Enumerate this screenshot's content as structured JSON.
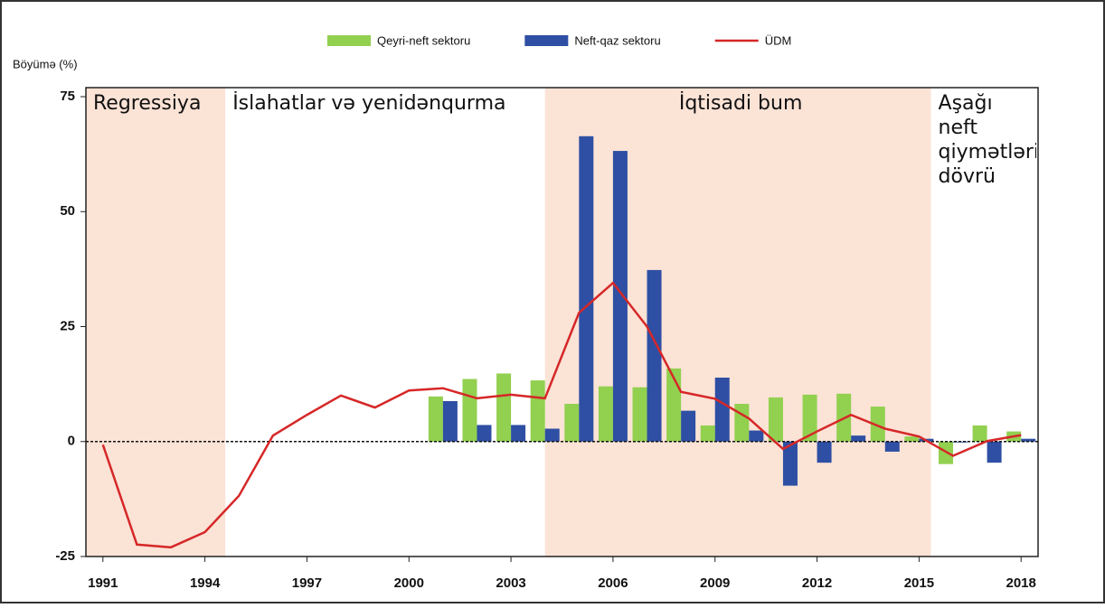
{
  "chart_data": {
    "type": "bar-line",
    "ylabel": "Böyümə (%)",
    "x": [
      1991,
      1992,
      1993,
      1994,
      1995,
      1996,
      1997,
      1998,
      1999,
      2000,
      2001,
      2002,
      2003,
      2004,
      2005,
      2006,
      2007,
      2008,
      2009,
      2010,
      2011,
      2012,
      2013,
      2014,
      2015,
      2016,
      2017,
      2018
    ],
    "series": [
      {
        "name": "Qeyri-neft sektoru",
        "type": "bar",
        "color": "#92d050",
        "values": [
          null,
          null,
          null,
          null,
          null,
          null,
          null,
          null,
          null,
          null,
          9.8,
          13.6,
          14.8,
          13.3,
          8.2,
          12,
          11.8,
          15.9,
          3.5,
          8.2,
          9.6,
          10.2,
          10.4,
          7.6,
          1.1,
          -4.9,
          3.5,
          2.2
        ]
      },
      {
        "name": "Neft-qaz sektoru",
        "type": "bar",
        "color": "#2e4fa3",
        "values": [
          null,
          null,
          null,
          null,
          null,
          null,
          null,
          null,
          null,
          null,
          8.8,
          3.6,
          3.6,
          2.8,
          66.4,
          63.2,
          37.3,
          6.7,
          13.9,
          2.4,
          -9.6,
          -4.6,
          1.3,
          -2.2,
          0.6,
          -0.2,
          -4.6,
          0.6
        ]
      },
      {
        "name": "ÜDM",
        "type": "line",
        "color": "#d62728",
        "values": [
          -0.7,
          -22.4,
          -23,
          -19.7,
          -11.8,
          1.3,
          5.8,
          10,
          7.4,
          11.1,
          11.6,
          9.4,
          10.2,
          9.4,
          28,
          34.5,
          25,
          10.8,
          9.3,
          5,
          -1.6,
          2.2,
          5.8,
          2.8,
          1.1,
          -3.1,
          0.1,
          1.4
        ]
      }
    ],
    "periods": [
      {
        "label": "Regressiya",
        "start": 1990.5,
        "end": 1994.6,
        "shaded": true
      },
      {
        "label": "İslahatlar və yenidənqurma",
        "start": 1994.6,
        "end": 2004.0,
        "shaded": false
      },
      {
        "label": "İqtisadi bum",
        "start": 2004.0,
        "end": 2015.35,
        "shaded": true
      },
      {
        "label": "Aşağı neft qiymətləri dövrü",
        "start": 2015.35,
        "end": 2018.5,
        "shaded": false
      }
    ],
    "xlim": [
      1990.5,
      2018.5
    ],
    "xticks": [
      1991,
      1994,
      1997,
      2000,
      2003,
      2006,
      2009,
      2012,
      2015,
      2018
    ],
    "ylim": [
      -25,
      75
    ],
    "yticks": [
      -25,
      0,
      25,
      50,
      75
    ],
    "shade_color": "#fbe3d6"
  }
}
